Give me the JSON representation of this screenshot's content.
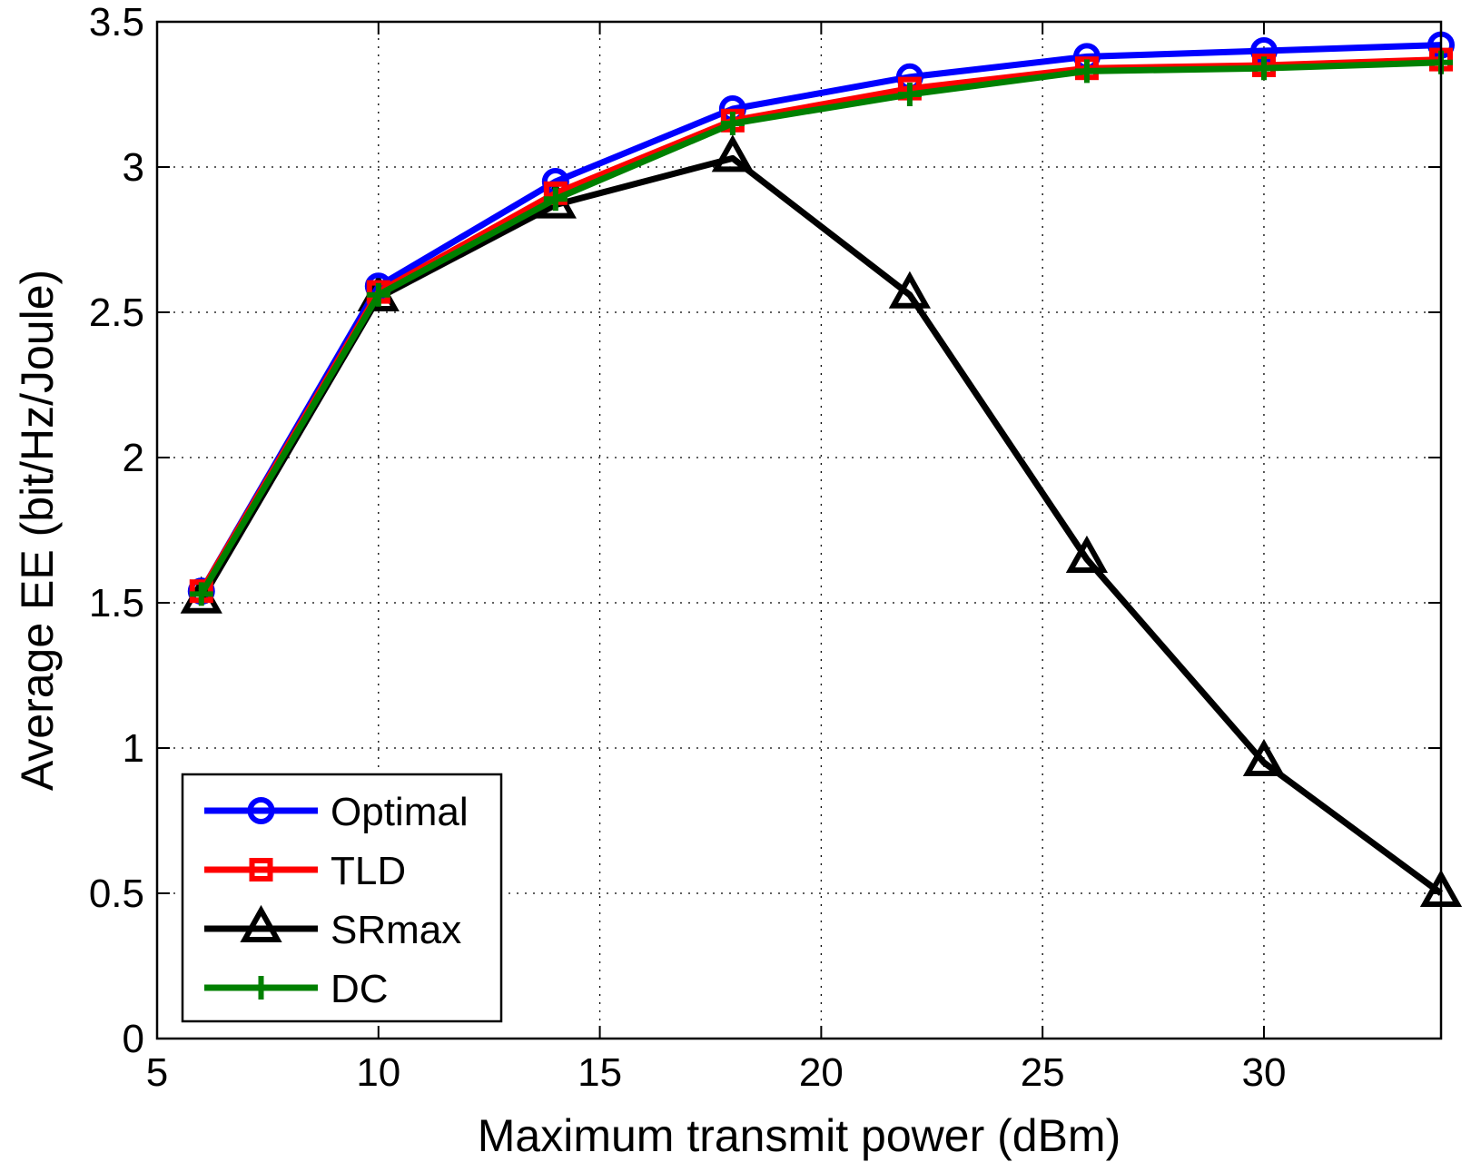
{
  "chart_data": {
    "type": "line",
    "title": "",
    "xlabel": "Maximum transmit power (dBm)",
    "ylabel": "Average EE (bit/Hz/Joule)",
    "xlim": [
      5,
      34
    ],
    "ylim": [
      0,
      3.5
    ],
    "xticks": [
      5,
      10,
      15,
      20,
      25,
      30
    ],
    "xtick_labels": [
      "5",
      "10",
      "15",
      "20",
      "25",
      "30"
    ],
    "yticks": [
      0,
      0.5,
      1,
      1.5,
      2,
      2.5,
      3,
      3.5
    ],
    "ytick_labels": [
      "0",
      "0.5",
      "1",
      "1.5",
      "2",
      "2.5",
      "3",
      "3.5"
    ],
    "grid": true,
    "legend_position": "bottom-left",
    "x": [
      6,
      10,
      14,
      18,
      22,
      26,
      30,
      34
    ],
    "series": [
      {
        "name": "Optimal",
        "color": "#0000ff",
        "marker": "circle",
        "values": [
          1.54,
          2.59,
          2.95,
          3.2,
          3.31,
          3.38,
          3.4,
          3.42
        ]
      },
      {
        "name": "TLD",
        "color": "#ff0000",
        "marker": "square",
        "values": [
          1.54,
          2.57,
          2.91,
          3.16,
          3.27,
          3.34,
          3.35,
          3.37
        ]
      },
      {
        "name": "SRmax",
        "color": "#000000",
        "marker": "triangle",
        "values": [
          1.51,
          2.55,
          2.87,
          3.03,
          2.56,
          1.65,
          0.95,
          0.5
        ]
      },
      {
        "name": "DC",
        "color": "#008000",
        "marker": "plus",
        "values": [
          1.53,
          2.56,
          2.89,
          3.15,
          3.25,
          3.33,
          3.34,
          3.36
        ]
      }
    ]
  }
}
